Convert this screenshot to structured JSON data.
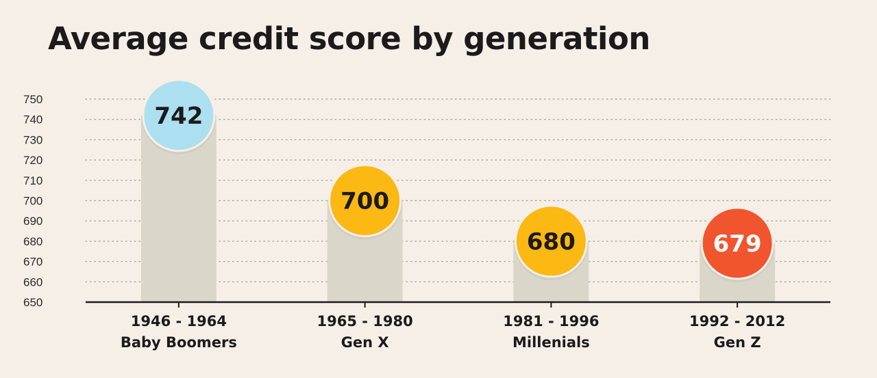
{
  "chart_data": {
    "type": "bar",
    "title": "Average credit score by generation",
    "categories": [
      {
        "years": "1946 - 1964",
        "name": "Baby Boomers"
      },
      {
        "years": "1965 - 1980",
        "name": "Gen X"
      },
      {
        "years": "1981 - 1996",
        "name": "Millenials"
      },
      {
        "years": "1992 - 2012",
        "name": "Gen Z"
      }
    ],
    "values": [
      742,
      700,
      680,
      679
    ],
    "value_labels": [
      "742",
      "700",
      "680",
      "679"
    ],
    "bubble_colors": [
      "#acdff0",
      "#fcb813",
      "#fcb813",
      "#f0552e"
    ],
    "label_colors": [
      "#1c1a1b",
      "#1c1a1b",
      "#1c1a1b",
      "#ffffff"
    ],
    "bar_color": "#dad6ca",
    "axis_color": "#1c1a1b",
    "grid_color": "#a8a4a0",
    "ylim": [
      650,
      750
    ],
    "yticks": [
      "650",
      "660",
      "670",
      "680",
      "690",
      "700",
      "710",
      "720",
      "730",
      "740",
      "750"
    ],
    "grid": true,
    "xlabel": "",
    "ylabel": ""
  }
}
